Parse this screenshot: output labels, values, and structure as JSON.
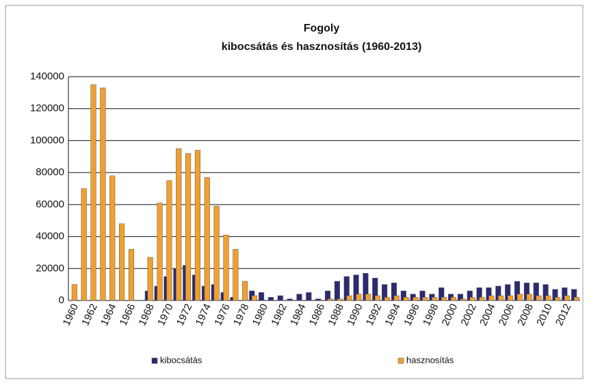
{
  "chart_data": {
    "type": "bar",
    "title": "Fogoly",
    "subtitle": "kibocsátás és hasznosítás (1960-2013)",
    "categories": [
      "1960",
      null,
      "1962",
      null,
      "1964",
      null,
      "1966",
      null,
      "1968",
      null,
      "1970",
      null,
      "1972",
      null,
      "1974",
      null,
      "1976",
      null,
      "1978",
      null,
      "1980",
      null,
      "1982",
      null,
      "1984",
      null,
      "1986",
      null,
      "1988",
      null,
      "1990",
      null,
      "1992",
      null,
      "1994",
      null,
      "1996",
      null,
      "1998",
      null,
      "2000",
      null,
      "2002",
      null,
      "2004",
      null,
      "2006",
      null,
      "2008",
      null,
      "2010",
      null,
      "2012",
      null
    ],
    "series": [
      {
        "name": "kibocsátás",
        "color": "#2b2a72",
        "values": [
          0,
          0,
          0,
          0,
          0,
          0,
          0,
          0,
          6000,
          9000,
          15000,
          20000,
          22000,
          16000,
          9000,
          10000,
          5000,
          2000,
          0,
          6000,
          5000,
          2000,
          3000,
          1000,
          4000,
          5000,
          1000,
          6000,
          12000,
          15000,
          16000,
          17000,
          14000,
          10000,
          11000,
          6000,
          4000,
          6000,
          4000,
          8000,
          4000,
          4000,
          6000,
          8000,
          8000,
          9000,
          10000,
          12000,
          11000,
          11000,
          10000,
          7000,
          8000,
          7000
        ]
      },
      {
        "name": "hasznosítás",
        "color": "#f0a030",
        "values": [
          10000,
          70000,
          135000,
          133000,
          78000,
          48000,
          32000,
          0,
          27000,
          61000,
          75000,
          95000,
          92000,
          94000,
          77000,
          59000,
          41000,
          32000,
          12000,
          3000,
          0,
          0,
          0,
          0,
          0,
          0,
          0,
          1000,
          1000,
          3000,
          4000,
          4000,
          3000,
          2000,
          3000,
          2000,
          2000,
          2000,
          2000,
          2000,
          2000,
          1000,
          2000,
          2000,
          3000,
          3000,
          3000,
          4000,
          4000,
          3000,
          3000,
          2000,
          3000,
          2000
        ]
      }
    ],
    "ylim": [
      0,
      140000
    ],
    "yticks": [
      0,
      20000,
      40000,
      60000,
      80000,
      100000,
      120000,
      140000
    ],
    "grid": true
  }
}
